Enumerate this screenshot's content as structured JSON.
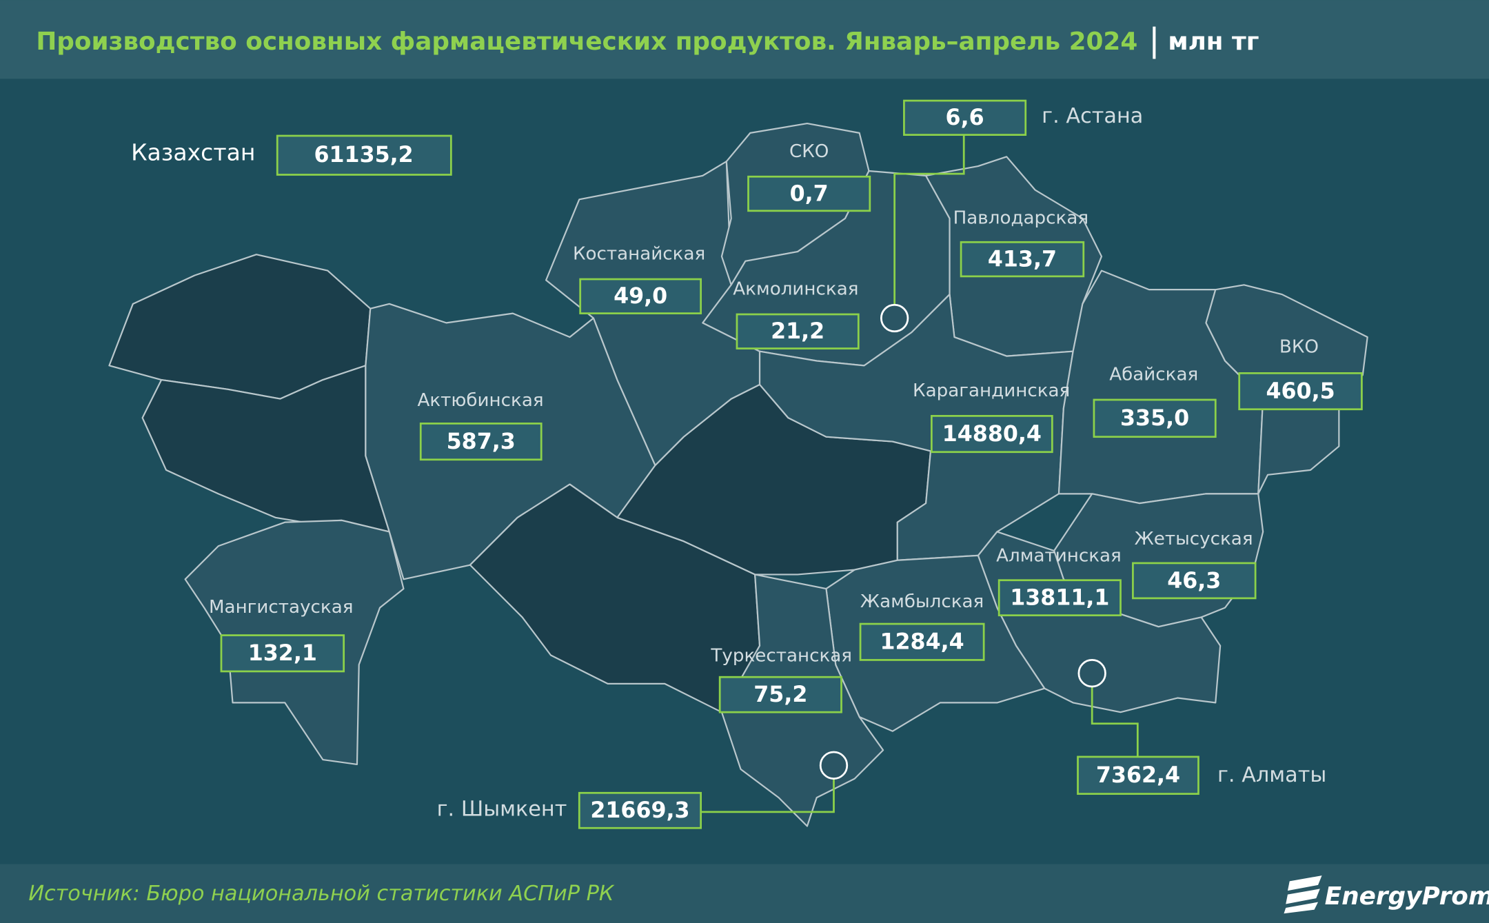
{
  "header": {
    "title": "Производство основных фармацевтических продуктов. Январь–апрель 2024",
    "unit": "млн тг"
  },
  "total": {
    "label": "Казахстан",
    "value": "61135,2"
  },
  "regions": [
    {
      "name": "СКО",
      "value": "0,7"
    },
    {
      "name": "г. Астана",
      "value": "6,6"
    },
    {
      "name": "Павлодарская",
      "value": "413,7"
    },
    {
      "name": "Костанайская",
      "value": "49,0"
    },
    {
      "name": "Акмолинская",
      "value": "21,2"
    },
    {
      "name": "Актюбинская",
      "value": "587,3"
    },
    {
      "name": "Карагандинская",
      "value": "14880,4"
    },
    {
      "name": "Абайская",
      "value": "335,0"
    },
    {
      "name": "ВКО",
      "value": "460,5"
    },
    {
      "name": "Жетысуская",
      "value": "46,3"
    },
    {
      "name": "Алматинская",
      "value": "13811,1"
    },
    {
      "name": "Жамбылская",
      "value": "1284,4"
    },
    {
      "name": "Мангистауская",
      "value": "132,1"
    },
    {
      "name": "Туркестанская",
      "value": "75,2"
    },
    {
      "name": "г. Шымкент",
      "value": "21669,3"
    },
    {
      "name": "г. Алматы",
      "value": "7362,4"
    }
  ],
  "footer": {
    "source": "Источник: Бюро национальной статистики АСПиР РК",
    "brand": "EnergyProm"
  }
}
